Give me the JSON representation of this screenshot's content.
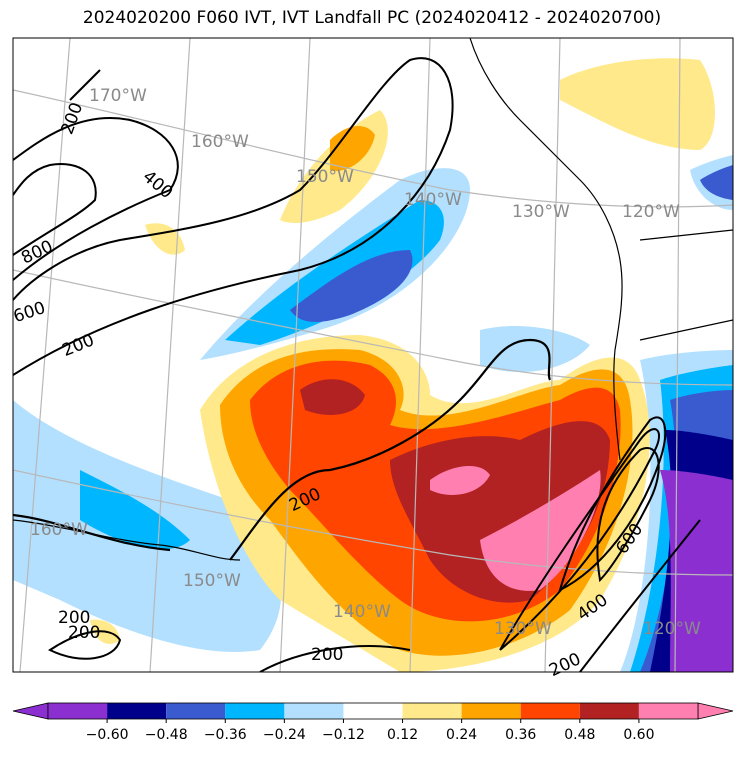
{
  "title": "2024020200 F060 IVT, IVT Landfall PC (2024020412 - 2024020700)",
  "colorbar": {
    "colors": [
      "#8b2fd0",
      "#00008b",
      "#3a5bd0",
      "#00b7ff",
      "#b3e0ff",
      "#ffffff",
      "#ffe98a",
      "#ffa500",
      "#ff4500",
      "#b22222",
      "#ff80b0"
    ],
    "tick_labels": [
      "−0.60",
      "−0.48",
      "−0.36",
      "−0.24",
      "−0.12",
      "0.12",
      "0.24",
      "0.36",
      "0.48",
      "0.60"
    ]
  },
  "longitude_labels": [
    "170°W",
    "160°W",
    "150°W",
    "140°W",
    "130°W",
    "120°W",
    "160°W",
    "150°W",
    "140°W",
    "130°W",
    "120°W"
  ],
  "contour_labels": [
    "200",
    "400",
    "800",
    "600",
    "200",
    "200",
    "200",
    "200",
    "200",
    "400",
    "600",
    "200"
  ]
}
